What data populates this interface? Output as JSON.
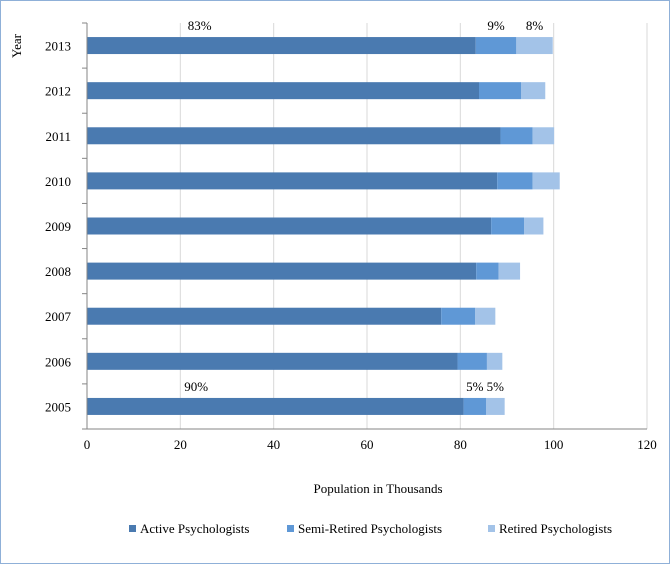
{
  "chart_data": {
    "type": "bar",
    "orientation": "horizontal",
    "stacked": true,
    "categories": [
      "2005",
      "2006",
      "2007",
      "2008",
      "2009",
      "2010",
      "2011",
      "2012",
      "2013"
    ],
    "series": [
      {
        "name": "Active Psychologists",
        "color": "#4a7ab0",
        "values": [
          80.7,
          79.4,
          75.9,
          83.4,
          86.6,
          87.9,
          88.6,
          84.0,
          83.3
        ]
      },
      {
        "name": "Semi-Retired Psychologists",
        "color": "#5f98d6",
        "values": [
          4.8,
          6.3,
          7.3,
          4.8,
          7.1,
          7.6,
          6.9,
          9.0,
          8.7
        ]
      },
      {
        "name": "Retired Psychologists",
        "color": "#a3c3e8",
        "values": [
          4.0,
          3.3,
          4.3,
          4.6,
          4.1,
          5.8,
          4.6,
          5.2,
          7.8
        ]
      }
    ],
    "xlabel": "Population in Thousands",
    "ylabel": "Year",
    "xlim": [
      0,
      120
    ],
    "xticks": [
      "0",
      "20",
      "40",
      "60",
      "80",
      "100",
      "120"
    ],
    "grid": "vertical",
    "legend_position": "bottom",
    "annotations": [
      {
        "category": "2013",
        "series": 0,
        "text": "83%"
      },
      {
        "category": "2013",
        "series": 1,
        "text": "9%"
      },
      {
        "category": "2013",
        "series": 2,
        "text": "8%"
      },
      {
        "category": "2005",
        "series": 0,
        "text": "90%"
      },
      {
        "category": "2005",
        "series": 1,
        "text": "5%"
      },
      {
        "category": "2005",
        "series": 2,
        "text": "5%"
      }
    ]
  }
}
